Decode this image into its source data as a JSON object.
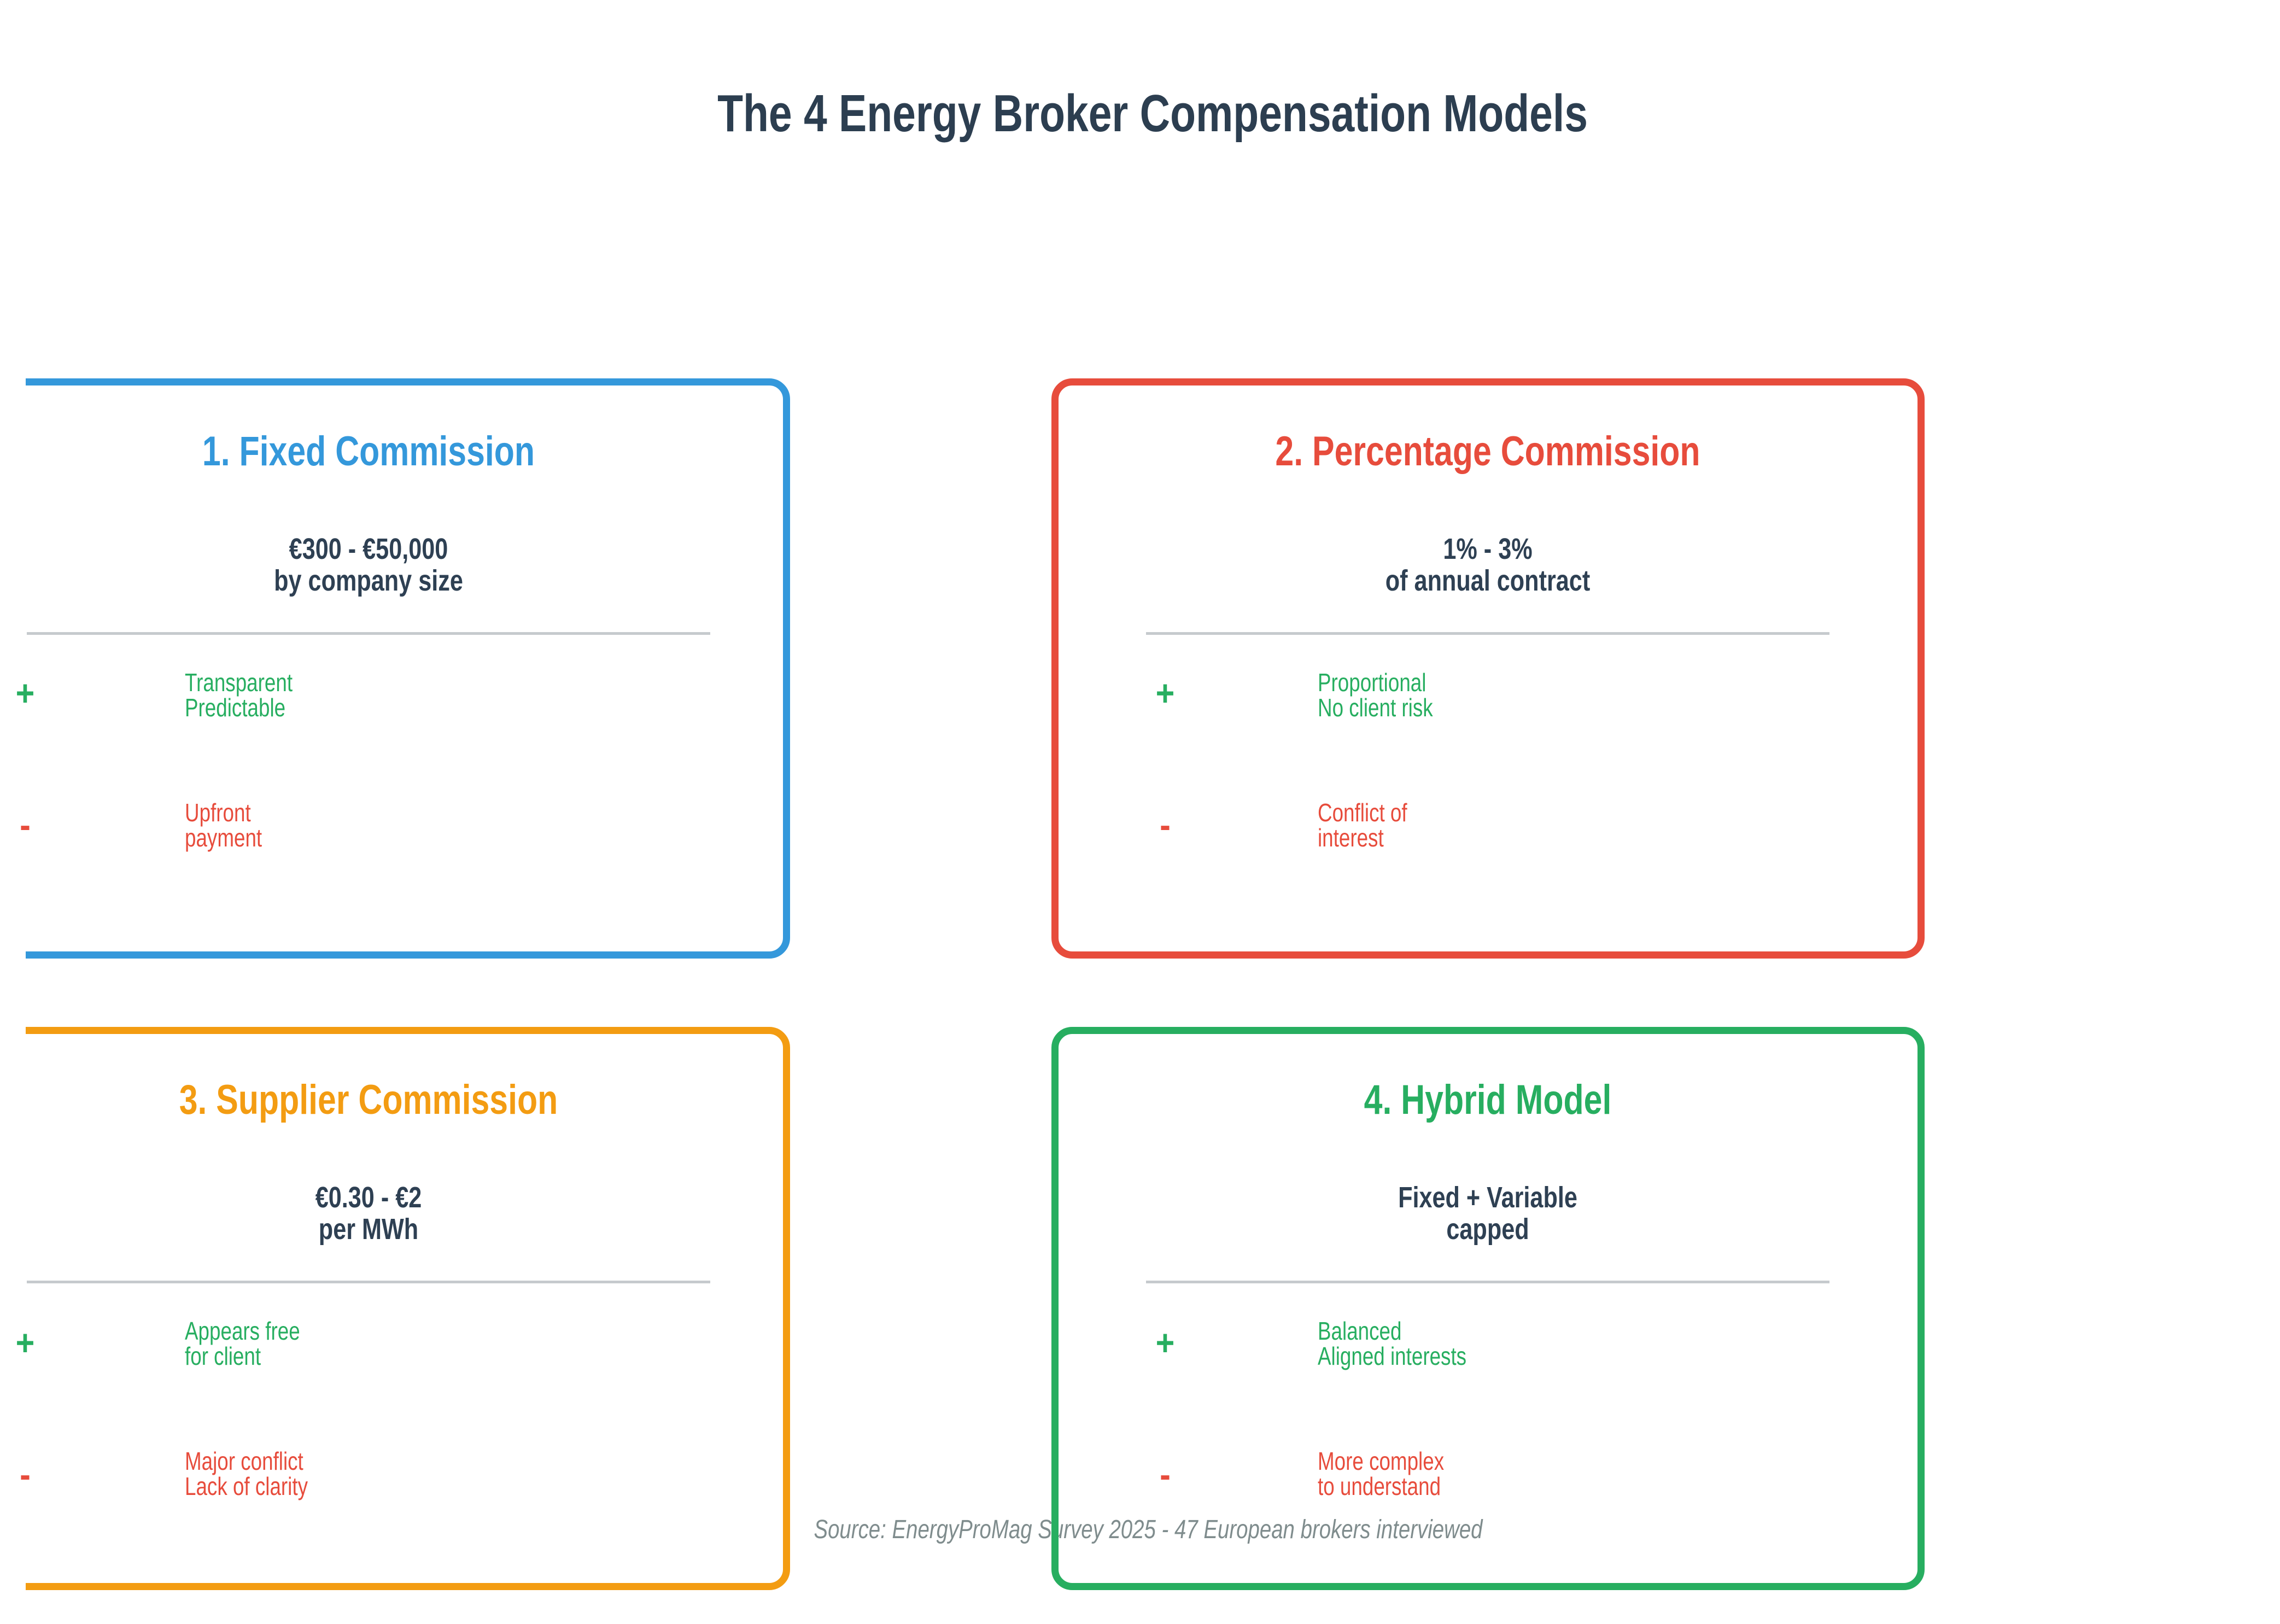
{
  "title": "The 4 Energy Broker Compensation Models",
  "source": "Source: EnergyProMag Survey 2025 - 47 European brokers interviewed",
  "icons": {
    "plus": "+",
    "minus": "-"
  },
  "colors": {
    "heading": "#2c3e50",
    "value": "#2e4053",
    "pros": "#27ae60",
    "cons": "#e74c3c",
    "divider": "#c6cacd",
    "source": "#7f8c8d"
  },
  "cards": [
    {
      "title": "1. Fixed Commission",
      "accent": "#3498db",
      "value": "€300 - €50,000\nby company size",
      "pros": "Transparent\nPredictable",
      "cons": "Upfront\npayment"
    },
    {
      "title": "2. Percentage Commission",
      "accent": "#e74c3c",
      "value": "1% - 3%\nof annual contract",
      "pros": "Proportional\nNo client risk",
      "cons": "Conflict of\ninterest"
    },
    {
      "title": "3. Supplier Commission",
      "accent": "#f39c12",
      "value": "€0.30 - €2\nper MWh",
      "pros": "Appears free\nfor client",
      "cons": "Major conflict\nLack of clarity"
    },
    {
      "title": "4. Hybrid Model",
      "accent": "#27ae60",
      "value": "Fixed + Variable\ncapped",
      "pros": "Balanced\nAligned interests",
      "cons": "More complex\nto understand"
    }
  ]
}
